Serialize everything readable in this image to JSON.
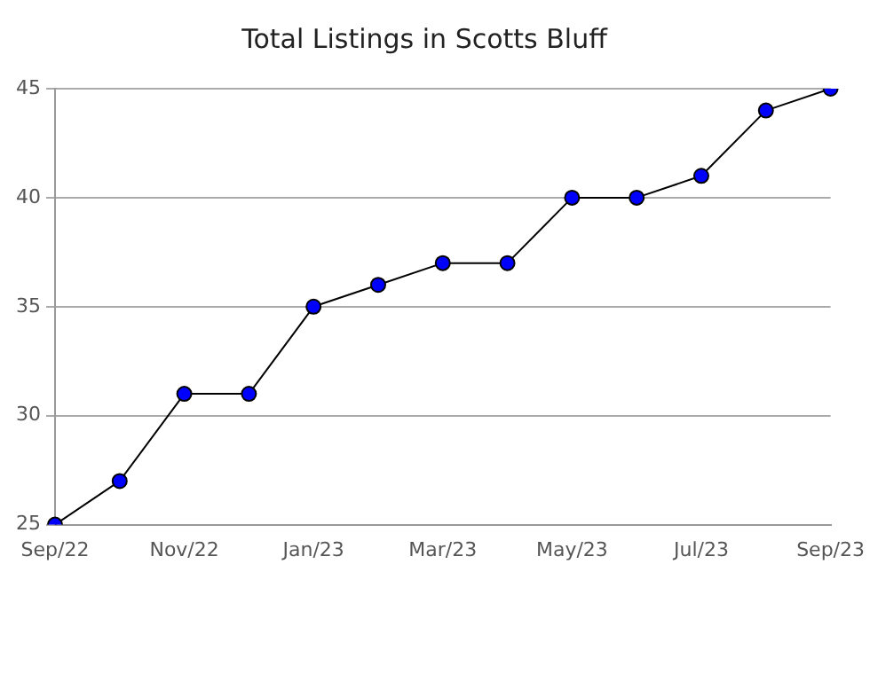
{
  "chart_data": {
    "type": "line",
    "title": "Total Listings in Scotts Bluff",
    "categories": [
      "Sep/22",
      null,
      "Nov/22",
      null,
      "Jan/23",
      null,
      "Mar/23",
      null,
      "May/23",
      null,
      "Jul/23",
      null,
      "Sep/23"
    ],
    "series": [
      {
        "color": "#0000ff",
        "values": [
          25,
          27,
          31,
          31,
          35,
          36,
          37,
          37,
          40,
          40,
          41,
          44,
          45
        ]
      }
    ],
    "ylim": [
      25,
      45
    ],
    "yticks": [
      25,
      30,
      35,
      40,
      45
    ],
    "grid": "y",
    "legend": false,
    "marker": "circle",
    "line_style": "solid"
  }
}
